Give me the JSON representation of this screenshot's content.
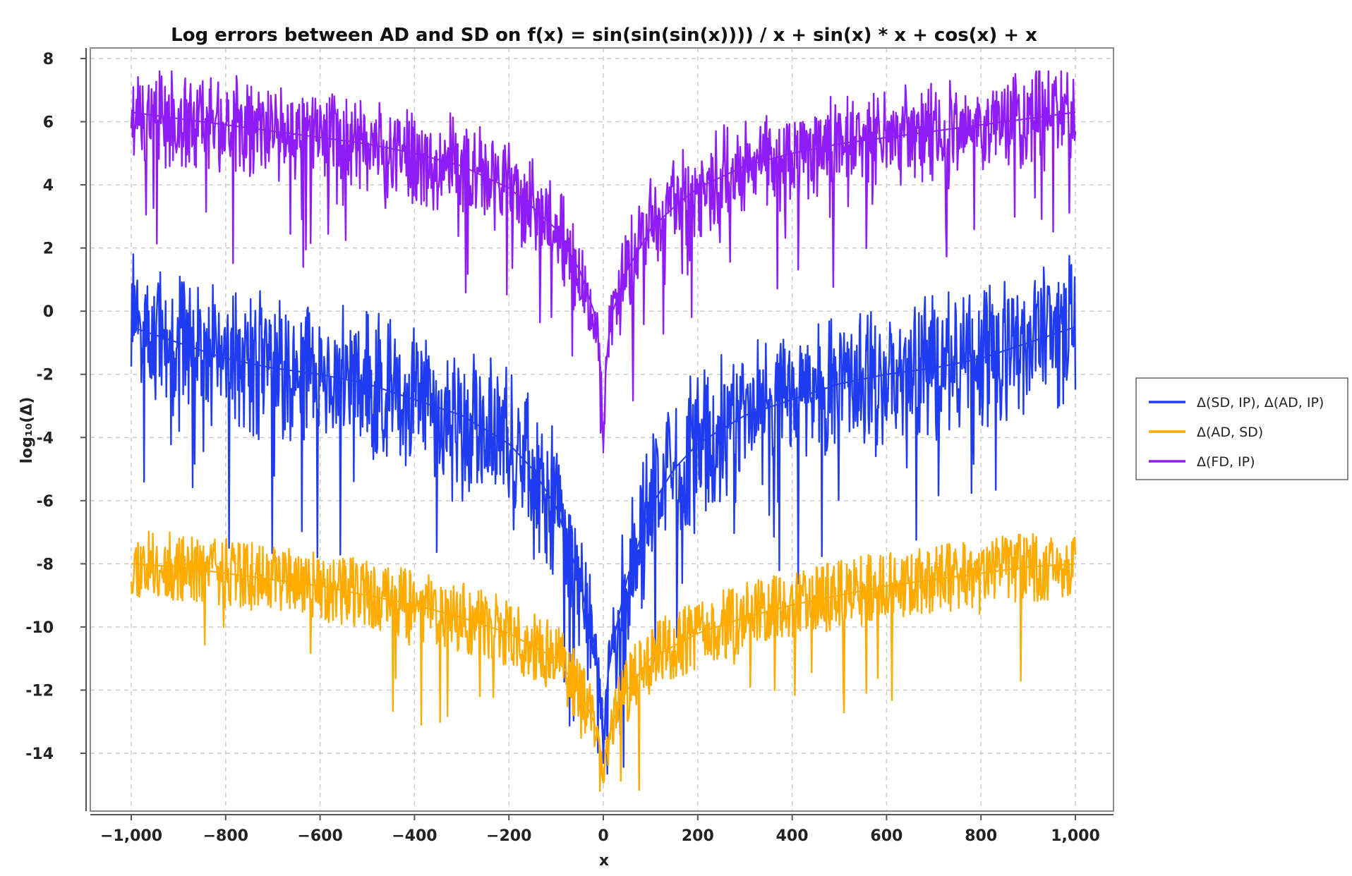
{
  "chart_data": {
    "type": "line",
    "title": "Log errors between AD and SD on f(x) = sin(sin(sin(x)))) / x + sin(x) * x + cos(x) + x",
    "xlabel": "x",
    "ylabel": "log₁₀(Δ)",
    "xlim": [
      -1000,
      1000
    ],
    "ylim": [
      -15.5,
      8
    ],
    "x_ticks": [
      -1000,
      -800,
      -600,
      -400,
      -200,
      0,
      200,
      400,
      600,
      800,
      1000
    ],
    "x_tick_labels": [
      "−1,000",
      "−800",
      "−600",
      "−400",
      "−200",
      "0",
      "200",
      "400",
      "600",
      "800",
      "1,000"
    ],
    "y_ticks": [
      8,
      6,
      4,
      2,
      0,
      -2,
      -4,
      -6,
      -8,
      -10,
      -12,
      -14
    ],
    "y_tick_labels": [
      "8",
      "6",
      "4",
      "2",
      "0",
      "-2",
      "-4",
      "-6",
      "-8",
      "-10",
      "-12",
      "-14"
    ],
    "grid": true,
    "legend_position": "right",
    "series": [
      {
        "name": "Δ(SD, IP), Δ(AD, IP)",
        "color": "#1f3cf0",
        "x": [
          -1000,
          -900,
          -800,
          -700,
          -600,
          -500,
          -400,
          -300,
          -200,
          -150,
          -100,
          -50,
          -20,
          -10,
          -5,
          0,
          5,
          10,
          20,
          50,
          100,
          150,
          200,
          300,
          400,
          500,
          600,
          700,
          800,
          900,
          1000
        ],
        "values": [
          -0.5,
          -1.0,
          -1.5,
          -1.8,
          -2.0,
          -2.3,
          -2.8,
          -3.3,
          -4.2,
          -5.0,
          -6.2,
          -8.5,
          -10.5,
          -11.5,
          -12.5,
          -14.0,
          -12.5,
          -11.5,
          -10.5,
          -8.5,
          -6.2,
          -5.0,
          -4.2,
          -3.3,
          -2.8,
          -2.3,
          -2.0,
          -1.8,
          -1.5,
          -1.0,
          -0.5
        ]
      },
      {
        "name": "Δ(AD, SD)",
        "color": "#ffab00",
        "x": [
          -1000,
          -900,
          -800,
          -700,
          -600,
          -500,
          -400,
          -300,
          -200,
          -150,
          -100,
          -50,
          -20,
          -10,
          -5,
          0,
          5,
          10,
          20,
          50,
          100,
          150,
          200,
          300,
          400,
          500,
          600,
          700,
          800,
          900,
          1000
        ],
        "values": [
          -8.0,
          -8.1,
          -8.3,
          -8.5,
          -8.7,
          -9.0,
          -9.3,
          -9.7,
          -10.2,
          -10.6,
          -11.0,
          -12.0,
          -13.0,
          -13.6,
          -14.0,
          -14.8,
          -14.0,
          -13.6,
          -13.0,
          -12.0,
          -11.0,
          -10.6,
          -10.2,
          -9.7,
          -9.3,
          -9.0,
          -8.7,
          -8.5,
          -8.3,
          -8.1,
          -8.0
        ]
      },
      {
        "name": "Δ(FD, IP)",
        "color": "#8f1cf7",
        "x": [
          -1000,
          -900,
          -800,
          -700,
          -600,
          -500,
          -400,
          -300,
          -200,
          -150,
          -100,
          -50,
          -20,
          -10,
          -5,
          0,
          5,
          10,
          20,
          50,
          100,
          150,
          200,
          300,
          400,
          500,
          600,
          700,
          800,
          900,
          1000
        ],
        "values": [
          6.3,
          6.1,
          5.9,
          5.7,
          5.5,
          5.3,
          5.0,
          4.6,
          3.9,
          3.3,
          2.6,
          1.3,
          0.0,
          -1.0,
          -2.0,
          -4.5,
          -2.0,
          -1.0,
          0.0,
          1.3,
          2.6,
          3.3,
          3.9,
          4.6,
          5.0,
          5.3,
          5.5,
          5.7,
          5.9,
          6.1,
          6.3
        ]
      }
    ]
  }
}
